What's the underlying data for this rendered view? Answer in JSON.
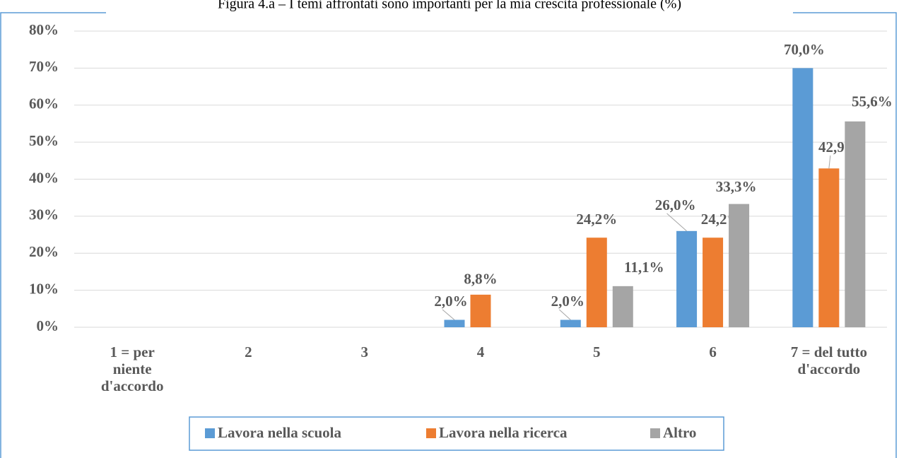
{
  "chart_data": {
    "type": "bar",
    "title": "Figura 4.a – I temi affrontati sono importanti per la mia crescita professionale (%)",
    "categories": [
      "1  = per niente d'accordo",
      "2",
      "3",
      "4",
      "5",
      "6",
      "7 = del tutto d'accordo"
    ],
    "series": [
      {
        "name": "Lavora nella scuola",
        "color": "#5b9bd5",
        "values": [
          0,
          0,
          0,
          2.0,
          2.0,
          26.0,
          70.0
        ],
        "value_labels": [
          null,
          null,
          null,
          "2,0%",
          "2,0%",
          "26,0%",
          "70,0%"
        ]
      },
      {
        "name": "Lavora nella ricerca",
        "color": "#ed7d31",
        "values": [
          0,
          0,
          0,
          8.8,
          24.2,
          24.2,
          42.9
        ],
        "value_labels": [
          null,
          null,
          null,
          "8,8%",
          "24,2%",
          "24,2%",
          "42,9%"
        ]
      },
      {
        "name": "Altro",
        "color": "#a5a5a5",
        "values": [
          0,
          0,
          0,
          0,
          11.1,
          33.3,
          55.6
        ],
        "value_labels": [
          null,
          null,
          null,
          null,
          "11,1%",
          "33,3%",
          "55,6%"
        ]
      }
    ],
    "ylim": [
      0,
      80
    ],
    "yticks": [
      {
        "value": 0,
        "label": "0%"
      },
      {
        "value": 10,
        "label": "10%"
      },
      {
        "value": 20,
        "label": "20%"
      },
      {
        "value": 30,
        "label": "30%"
      },
      {
        "value": 40,
        "label": "40%"
      },
      {
        "value": 50,
        "label": "50%"
      },
      {
        "value": 60,
        "label": "60%"
      },
      {
        "value": 70,
        "label": "70%"
      },
      {
        "value": 80,
        "label": "80%"
      }
    ],
    "grid": true,
    "legend": "bottom"
  }
}
